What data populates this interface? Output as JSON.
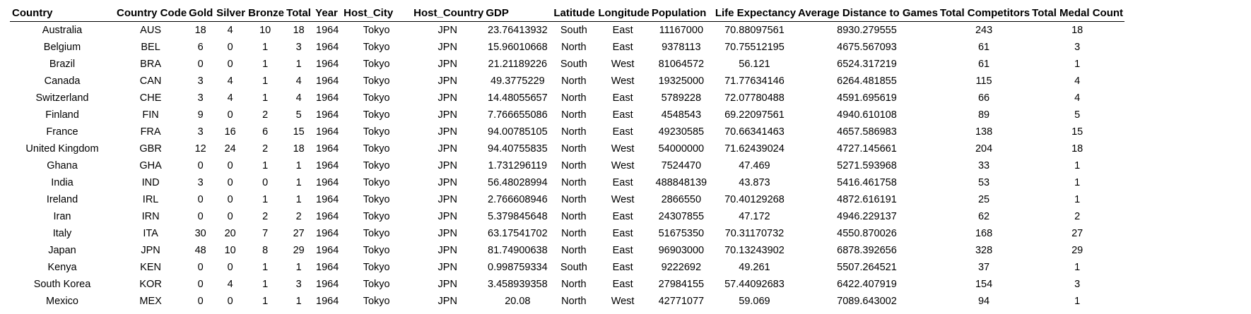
{
  "table": {
    "headers": [
      "Country",
      "Country Code",
      "Gold",
      "Silver",
      "Bronze",
      "Total",
      "Year",
      "Host_City",
      "Host_Country",
      "GDP",
      "Latitude",
      "Longitude",
      "Population",
      "Life Expectancy",
      "Average Distance to Games",
      "Total Competitors",
      "Total Medal Count"
    ],
    "rows": [
      [
        "Australia",
        "AUS",
        "18",
        "4",
        "10",
        "18",
        "1964",
        "Tokyo",
        "JPN",
        "23.76413932",
        "South",
        "East",
        "11167000",
        "70.88097561",
        "8930.279555",
        "243",
        "18"
      ],
      [
        "Belgium",
        "BEL",
        "6",
        "0",
        "1",
        "3",
        "1964",
        "Tokyo",
        "JPN",
        "15.96010668",
        "North",
        "East",
        "9378113",
        "70.75512195",
        "4675.567093",
        "61",
        "3"
      ],
      [
        "Brazil",
        "BRA",
        "0",
        "0",
        "1",
        "1",
        "1964",
        "Tokyo",
        "JPN",
        "21.21189226",
        "South",
        "West",
        "81064572",
        "56.121",
        "6524.317219",
        "61",
        "1"
      ],
      [
        "Canada",
        "CAN",
        "3",
        "4",
        "1",
        "4",
        "1964",
        "Tokyo",
        "JPN",
        "49.3775229",
        "North",
        "West",
        "19325000",
        "71.77634146",
        "6264.481855",
        "115",
        "4"
      ],
      [
        "Switzerland",
        "CHE",
        "3",
        "4",
        "1",
        "4",
        "1964",
        "Tokyo",
        "JPN",
        "14.48055657",
        "North",
        "East",
        "5789228",
        "72.07780488",
        "4591.695619",
        "66",
        "4"
      ],
      [
        "Finland",
        "FIN",
        "9",
        "0",
        "2",
        "5",
        "1964",
        "Tokyo",
        "JPN",
        "7.766655086",
        "North",
        "East",
        "4548543",
        "69.22097561",
        "4940.610108",
        "89",
        "5"
      ],
      [
        "France",
        "FRA",
        "3",
        "16",
        "6",
        "15",
        "1964",
        "Tokyo",
        "JPN",
        "94.00785105",
        "North",
        "East",
        "49230585",
        "70.66341463",
        "4657.586983",
        "138",
        "15"
      ],
      [
        "United Kingdom",
        "GBR",
        "12",
        "24",
        "2",
        "18",
        "1964",
        "Tokyo",
        "JPN",
        "94.40755835",
        "North",
        "West",
        "54000000",
        "71.62439024",
        "4727.145661",
        "204",
        "18"
      ],
      [
        "Ghana",
        "GHA",
        "0",
        "0",
        "1",
        "1",
        "1964",
        "Tokyo",
        "JPN",
        "1.731296119",
        "North",
        "West",
        "7524470",
        "47.469",
        "5271.593968",
        "33",
        "1"
      ],
      [
        "India",
        "IND",
        "3",
        "0",
        "0",
        "1",
        "1964",
        "Tokyo",
        "JPN",
        "56.48028994",
        "North",
        "East",
        "488848139",
        "43.873",
        "5416.461758",
        "53",
        "1"
      ],
      [
        "Ireland",
        "IRL",
        "0",
        "0",
        "1",
        "1",
        "1964",
        "Tokyo",
        "JPN",
        "2.766608946",
        "North",
        "West",
        "2866550",
        "70.40129268",
        "4872.616191",
        "25",
        "1"
      ],
      [
        "Iran",
        "IRN",
        "0",
        "0",
        "2",
        "2",
        "1964",
        "Tokyo",
        "JPN",
        "5.379845648",
        "North",
        "East",
        "24307855",
        "47.172",
        "4946.229137",
        "62",
        "2"
      ],
      [
        "Italy",
        "ITA",
        "30",
        "20",
        "7",
        "27",
        "1964",
        "Tokyo",
        "JPN",
        "63.17541702",
        "North",
        "East",
        "51675350",
        "70.31170732",
        "4550.870026",
        "168",
        "27"
      ],
      [
        "Japan",
        "JPN",
        "48",
        "10",
        "8",
        "29",
        "1964",
        "Tokyo",
        "JPN",
        "81.74900638",
        "North",
        "East",
        "96903000",
        "70.13243902",
        "6878.392656",
        "328",
        "29"
      ],
      [
        "Kenya",
        "KEN",
        "0",
        "0",
        "1",
        "1",
        "1964",
        "Tokyo",
        "JPN",
        "0.998759334",
        "South",
        "East",
        "9222692",
        "49.261",
        "5507.264521",
        "37",
        "1"
      ],
      [
        "South Korea",
        "KOR",
        "0",
        "4",
        "1",
        "3",
        "1964",
        "Tokyo",
        "JPN",
        "3.458939358",
        "North",
        "East",
        "27984155",
        "57.44092683",
        "6422.407919",
        "154",
        "3"
      ],
      [
        "Mexico",
        "MEX",
        "0",
        "0",
        "1",
        "1",
        "1964",
        "Tokyo",
        "JPN",
        "20.08",
        "North",
        "West",
        "42771077",
        "59.069",
        "7089.643002",
        "94",
        "1"
      ]
    ]
  }
}
